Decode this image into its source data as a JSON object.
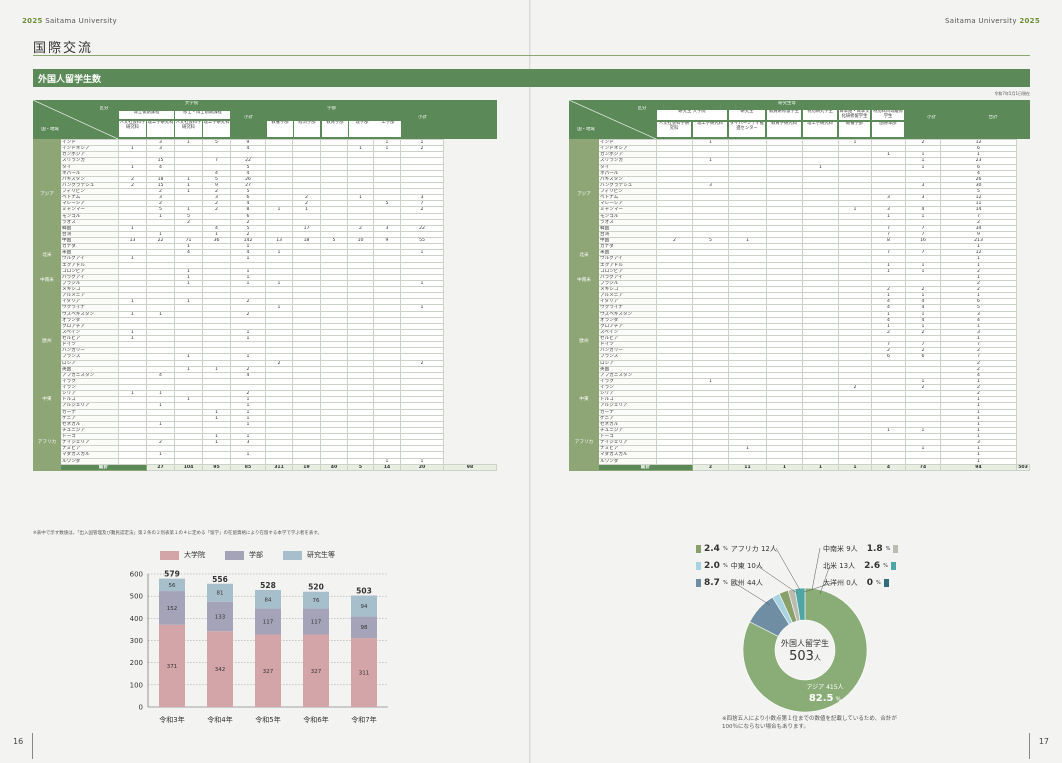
{
  "header": {
    "left_year": "2025",
    "left_name": "Saitama University",
    "right_name": "Saitama University",
    "right_year": "2025",
    "page_left": "16",
    "page_right": "17"
  },
  "title": "国際交流",
  "section": "外国人留学生数",
  "date_note": "令和7年5月1日現在",
  "table_left": {
    "corner_top": "区分",
    "corner_bottom": "国・地域",
    "grad_school": "大学院",
    "doctoral": "博士後期課程",
    "masters": "修士・博士前期課程",
    "subtotal": "小計",
    "faculty": "学部",
    "grad_cols": [
      "人文社会科学研究科",
      "理工学研究科",
      "人文社会科学研究科",
      "理工学研究科"
    ],
    "fac_cols": [
      "教養学部",
      "経済学部",
      "教育学部",
      "理学部",
      "工学部"
    ],
    "fac_subtotal": "小計"
  },
  "table_right": {
    "corner_top": "区分",
    "corner_bottom": "国・地域",
    "research_students": "研究生等",
    "col_groups": [
      "研究生 大学院",
      "研究生",
      "教員研修留学生",
      "特別研究学生",
      "日本語・日本文化研修留学生",
      "特別科目等履修学生"
    ],
    "col_subs": [
      "人文社会科学研究科",
      "理工学研究科",
      "ダイバーシティ推進センター",
      "教育学研究科",
      "理工学研究科",
      "教養学部",
      "国際本部"
    ],
    "subtotal": "小計",
    "total": "合計"
  },
  "regions": [
    {
      "name": "アジア",
      "count": 18
    },
    {
      "name": "北米",
      "count": 2
    },
    {
      "name": "中南米",
      "count": 6
    },
    {
      "name": "欧州",
      "count": 14
    },
    {
      "name": "中東",
      "count": 5
    },
    {
      "name": "アフリカ",
      "count": 12
    }
  ],
  "countries": [
    "インド",
    "インドネシア",
    "カンボジア",
    "スリランカ",
    "タイ",
    "ネパール",
    "パキスタン",
    "バングラデシュ",
    "フィリピン",
    "ベトナム",
    "マレーシア",
    "ミャンマー",
    "モンゴル",
    "ラオス",
    "韓国",
    "台湾",
    "中国",
    "カナダ",
    "米国",
    "ウルグアイ",
    "エクアドル",
    "コロンビア",
    "パラグアイ",
    "ブラジル",
    "メキシコ",
    "アルメニア",
    "イタリア",
    "ウクライナ",
    "ウズベキスタン",
    "オランダ",
    "クロアチア",
    "スペイン",
    "セルビア",
    "ドイツ",
    "ハンガリー",
    "フランス",
    "ロシア",
    "英国",
    "アフガニスタン",
    "イラク",
    "イラン",
    "シリア",
    "トルコ",
    "アルジェリア",
    "ガーナ",
    "ケニア",
    "セネガル",
    "チュニジア",
    "トーゴ",
    "ナイジェリア",
    "ナミビア",
    "マダガスカル",
    "ルワンダ"
  ],
  "left_rows": [
    [
      "",
      "3",
      "1",
      "5",
      "9",
      "",
      "",
      "",
      "",
      "1",
      "1"
    ],
    [
      "1",
      "3",
      "",
      "",
      "4",
      "",
      "",
      "",
      "1",
      "1",
      "2"
    ],
    [
      "",
      "",
      "",
      "",
      "",
      "",
      "",
      "",
      "",
      "",
      ""
    ],
    [
      "",
      "15",
      "",
      "7",
      "22",
      "",
      "",
      "",
      "",
      "",
      ""
    ],
    [
      "1",
      "4",
      "",
      "",
      "5",
      "",
      "",
      "",
      "",
      "",
      ""
    ],
    [
      "",
      "",
      "",
      "4",
      "4",
      "",
      "",
      "",
      "",
      "",
      ""
    ],
    [
      "2",
      "18",
      "1",
      "5",
      "26",
      "",
      "",
      "",
      "",
      "",
      ""
    ],
    [
      "2",
      "15",
      "1",
      "9",
      "27",
      "",
      "",
      "",
      "",
      "",
      ""
    ],
    [
      "",
      "2",
      "1",
      "2",
      "5",
      "",
      "",
      "",
      "",
      "",
      ""
    ],
    [
      "",
      "3",
      "",
      "3",
      "6",
      "",
      "2",
      "",
      "1",
      "",
      "3"
    ],
    [
      "",
      "2",
      "",
      "2",
      "4",
      "",
      "2",
      "",
      "",
      "5",
      "7"
    ],
    [
      "",
      "5",
      "1",
      "2",
      "8",
      "1",
      "1",
      "",
      "",
      "",
      "2"
    ],
    [
      "",
      "1",
      "5",
      "",
      "6",
      "",
      "",
      "",
      "",
      "",
      ""
    ],
    [
      "",
      "",
      "2",
      "",
      "2",
      "",
      "",
      "",
      "",
      "",
      ""
    ],
    [
      "1",
      "",
      "",
      "4",
      "5",
      "",
      "17",
      "",
      "2",
      "3",
      "22"
    ],
    [
      "",
      "1",
      "",
      "1",
      "2",
      "",
      "",
      "",
      "",
      "",
      ""
    ],
    [
      "13",
      "22",
      "71",
      "36",
      "142",
      "13",
      "18",
      "5",
      "10",
      "9",
      "55"
    ],
    [
      "",
      "",
      "1",
      "",
      "1",
      "",
      "",
      "",
      "",
      "",
      ""
    ],
    [
      "",
      "",
      "4",
      "",
      "4",
      "1",
      "",
      "",
      "",
      "",
      "1"
    ],
    [
      "1",
      "",
      "",
      "",
      "1",
      "",
      "",
      "",
      "",
      "",
      ""
    ],
    [
      "",
      "",
      "",
      "",
      "",
      "",
      "",
      "",
      "",
      "",
      ""
    ],
    [
      "",
      "",
      "1",
      "",
      "1",
      "",
      "",
      "",
      "",
      "",
      ""
    ],
    [
      "",
      "",
      "1",
      "",
      "1",
      "",
      "",
      "",
      "",
      "",
      ""
    ],
    [
      "",
      "",
      "1",
      "",
      "1",
      "1",
      "",
      "",
      "",
      "",
      "1"
    ],
    [
      "",
      "",
      "",
      "",
      "",
      "",
      "",
      "",
      "",
      "",
      ""
    ],
    [
      "",
      "",
      "",
      "",
      "",
      "",
      "",
      "",
      "",
      "",
      ""
    ],
    [
      "1",
      "",
      "1",
      "",
      "2",
      "",
      "",
      "",
      "",
      "",
      ""
    ],
    [
      "",
      "",
      "",
      "",
      "",
      "1",
      "",
      "",
      "",
      "",
      "1"
    ],
    [
      "1",
      "1",
      "",
      "",
      "2",
      "",
      "",
      "",
      "",
      "",
      ""
    ],
    [
      "",
      "",
      "",
      "",
      "",
      "",
      "",
      "",
      "",
      "",
      ""
    ],
    [
      "",
      "",
      "",
      "",
      "",
      "",
      "",
      "",
      "",
      "",
      ""
    ],
    [
      "1",
      "",
      "",
      "",
      "1",
      "",
      "",
      "",
      "",
      "",
      ""
    ],
    [
      "1",
      "",
      "",
      "",
      "1",
      "",
      "",
      "",
      "",
      "",
      ""
    ],
    [
      "",
      "",
      "",
      "",
      "",
      "",
      "",
      "",
      "",
      "",
      ""
    ],
    [
      "",
      "",
      "",
      "",
      "",
      "",
      "",
      "",
      "",
      "",
      ""
    ],
    [
      "",
      "",
      "1",
      "",
      "1",
      "",
      "",
      "",
      "",
      "",
      ""
    ],
    [
      "",
      "",
      "",
      "",
      "",
      "2",
      "",
      "",
      "",
      "",
      "2"
    ],
    [
      "",
      "",
      "1",
      "1",
      "2",
      "",
      "",
      "",
      "",
      "",
      ""
    ],
    [
      "",
      "4",
      "",
      "",
      "4",
      "",
      "",
      "",
      "",
      "",
      ""
    ],
    [
      "",
      "",
      "",
      "",
      "",
      "",
      "",
      "",
      "",
      "",
      ""
    ],
    [
      "",
      "",
      "",
      "",
      "",
      "",
      "",
      "",
      "",
      "",
      ""
    ],
    [
      "1",
      "1",
      "",
      "",
      "2",
      "",
      "",
      "",
      "",
      "",
      ""
    ],
    [
      "",
      "",
      "1",
      "",
      "1",
      "",
      "",
      "",
      "",
      "",
      ""
    ],
    [
      "",
      "1",
      "",
      "",
      "1",
      "",
      "",
      "",
      "",
      "",
      ""
    ],
    [
      "",
      "",
      "",
      "1",
      "1",
      "",
      "",
      "",
      "",
      "",
      ""
    ],
    [
      "",
      "",
      "",
      "1",
      "1",
      "",
      "",
      "",
      "",
      "",
      ""
    ],
    [
      "",
      "1",
      "",
      "",
      "1",
      "",
      "",
      "",
      "",
      "",
      ""
    ],
    [
      "",
      "",
      "",
      "",
      "",
      "",
      "",
      "",
      "",
      "",
      ""
    ],
    [
      "",
      "",
      "",
      "1",
      "1",
      "",
      "",
      "",
      "",
      "",
      ""
    ],
    [
      "",
      "2",
      "",
      "1",
      "3",
      "",
      "",
      "",
      "",
      "",
      ""
    ],
    [
      "",
      "",
      "",
      "",
      "",
      "",
      "",
      "",
      "",
      "",
      ""
    ],
    [
      "",
      "1",
      "",
      "",
      "1",
      "",
      "",
      "",
      "",
      "",
      ""
    ],
    [
      "",
      "",
      "",
      "",
      "",
      "",
      "",
      "",
      "",
      "1",
      "1"
    ]
  ],
  "left_total": [
    "27",
    "104",
    "95",
    "85",
    "311",
    "19",
    "40",
    "5",
    "14",
    "20",
    "98"
  ],
  "right_rows": [
    [
      "",
      "1",
      "",
      "",
      "",
      "1",
      "",
      "2",
      "12"
    ],
    [
      "",
      "",
      "",
      "",
      "",
      "",
      "",
      "",
      "6"
    ],
    [
      "",
      "",
      "",
      "",
      "",
      "",
      "1",
      "1",
      "1"
    ],
    [
      "",
      "1",
      "",
      "",
      "",
      "",
      "",
      "1",
      "23"
    ],
    [
      "",
      "",
      "",
      "",
      "1",
      "",
      "",
      "1",
      "6"
    ],
    [
      "",
      "",
      "",
      "",
      "",
      "",
      "",
      "",
      "4"
    ],
    [
      "",
      "",
      "",
      "",
      "",
      "",
      "",
      "",
      "26"
    ],
    [
      "",
      "3",
      "",
      "",
      "",
      "",
      "",
      "3",
      "30"
    ],
    [
      "",
      "",
      "",
      "",
      "",
      "",
      "",
      "",
      "5"
    ],
    [
      "",
      "",
      "",
      "",
      "",
      "",
      "3",
      "3",
      "12"
    ],
    [
      "",
      "",
      "",
      "",
      "",
      "",
      "",
      "",
      "11"
    ],
    [
      "",
      "",
      "",
      "",
      "",
      "1",
      "3",
      "4",
      "14"
    ],
    [
      "",
      "",
      "",
      "",
      "",
      "",
      "1",
      "1",
      "7"
    ],
    [
      "",
      "",
      "",
      "",
      "",
      "",
      "",
      "",
      "2"
    ],
    [
      "",
      "",
      "",
      "",
      "",
      "",
      "7",
      "7",
      "34"
    ],
    [
      "",
      "",
      "",
      "",
      "",
      "",
      "7",
      "7",
      "9"
    ],
    [
      "2",
      "5",
      "1",
      "",
      "",
      "",
      "8",
      "16",
      "213"
    ],
    [
      "",
      "",
      "",
      "",
      "",
      "",
      "",
      "",
      "1"
    ],
    [
      "",
      "",
      "",
      "",
      "",
      "",
      "7",
      "7",
      "12"
    ],
    [
      "",
      "",
      "",
      "",
      "",
      "",
      "",
      "",
      "1"
    ],
    [
      "",
      "",
      "",
      "",
      "",
      "",
      "1",
      "1",
      "1"
    ],
    [
      "",
      "",
      "",
      "",
      "",
      "",
      "1",
      "1",
      "2"
    ],
    [
      "",
      "",
      "",
      "",
      "",
      "",
      "",
      "",
      "1"
    ],
    [
      "",
      "",
      "",
      "",
      "",
      "",
      "",
      "",
      "2"
    ],
    [
      "",
      "",
      "",
      "",
      "",
      "",
      "2",
      "2",
      "2"
    ],
    [
      "",
      "",
      "",
      "",
      "",
      "",
      "1",
      "1",
      "1"
    ],
    [
      "",
      "",
      "",
      "",
      "",
      "",
      "4",
      "4",
      "6"
    ],
    [
      "",
      "",
      "",
      "",
      "",
      "",
      "4",
      "4",
      "5"
    ],
    [
      "",
      "",
      "",
      "",
      "",
      "",
      "1",
      "1",
      "3"
    ],
    [
      "",
      "",
      "",
      "",
      "",
      "",
      "4",
      "4",
      "4"
    ],
    [
      "",
      "",
      "",
      "",
      "",
      "",
      "1",
      "1",
      "1"
    ],
    [
      "",
      "",
      "",
      "",
      "",
      "",
      "2",
      "2",
      "3"
    ],
    [
      "",
      "",
      "",
      "",
      "",
      "",
      "",
      "",
      "1"
    ],
    [
      "",
      "",
      "",
      "",
      "",
      "",
      "7",
      "7",
      "7"
    ],
    [
      "",
      "",
      "",
      "",
      "",
      "",
      "2",
      "2",
      "2"
    ],
    [
      "",
      "",
      "",
      "",
      "",
      "",
      "6",
      "6",
      "7"
    ],
    [
      "",
      "",
      "",
      "",
      "",
      "",
      "",
      "",
      "2"
    ],
    [
      "",
      "",
      "",
      "",
      "",
      "",
      "",
      "",
      "2"
    ],
    [
      "",
      "",
      "",
      "",
      "",
      "",
      "",
      "",
      "4"
    ],
    [
      "",
      "1",
      "",
      "",
      "",
      "",
      "",
      "1",
      "1"
    ],
    [
      "",
      "",
      "",
      "",
      "",
      "2",
      "",
      "2",
      "2"
    ],
    [
      "",
      "",
      "",
      "",
      "",
      "",
      "",
      "",
      "2"
    ],
    [
      "",
      "",
      "",
      "",
      "",
      "",
      "",
      "",
      "1"
    ],
    [
      "",
      "",
      "",
      "",
      "",
      "",
      "",
      "",
      "1"
    ],
    [
      "",
      "",
      "",
      "",
      "",
      "",
      "",
      "",
      "1"
    ],
    [
      "",
      "",
      "",
      "",
      "",
      "",
      "",
      "",
      "1"
    ],
    [
      "",
      "",
      "",
      "",
      "",
      "",
      "",
      "",
      "1"
    ],
    [
      "",
      "",
      "",
      "",
      "",
      "",
      "1",
      "1",
      "1"
    ],
    [
      "",
      "",
      "",
      "",
      "",
      "",
      "",
      "",
      "1"
    ],
    [
      "",
      "",
      "",
      "",
      "",
      "",
      "",
      "",
      "3"
    ],
    [
      "",
      "",
      "1",
      "",
      "",
      "",
      "",
      "1",
      "1"
    ],
    [
      "",
      "",
      "",
      "",
      "",
      "",
      "",
      "",
      "1"
    ],
    [
      "",
      "",
      "",
      "",
      "",
      "",
      "",
      "",
      "1"
    ]
  ],
  "right_total": [
    "2",
    "11",
    "1",
    "1",
    "1",
    "4",
    "74",
    "94",
    "503"
  ],
  "total_label": "総計",
  "footnote": "※表中で示す数値は，「出入国管理及び難民認定法」第２条の２別表第１の４に定める「留学」の在留資格により在留する本学で学ぶ者を表す。",
  "chart_data": [
    {
      "type": "bar",
      "stacked": true,
      "categories": [
        "令和3年",
        "令和4年",
        "令和5年",
        "令和6年",
        "令和7年"
      ],
      "series": [
        {
          "name": "大学院",
          "values": [
            371,
            342,
            327,
            327,
            311
          ],
          "color": "#d4a5a8"
        },
        {
          "name": "学部",
          "values": [
            152,
            133,
            117,
            117,
            98
          ],
          "color": "#a5a3b8"
        },
        {
          "name": "研究生等",
          "values": [
            56,
            81,
            84,
            76,
            94
          ],
          "color": "#a7bfcb"
        }
      ],
      "totals": [
        579,
        556,
        528,
        520,
        503
      ],
      "ylim": [
        0,
        600
      ],
      "yticks": [
        0,
        100,
        200,
        300,
        400,
        500,
        600
      ],
      "grid": true,
      "legend": "top"
    },
    {
      "type": "pie",
      "center_label": "外国人留学生",
      "center_value": "503",
      "center_unit": "人",
      "big_label": "アジア 415人",
      "big_pct": "82.5",
      "slices": [
        {
          "name": "アジア",
          "count": "415人",
          "pct": 82.5,
          "color": "#8aac76"
        },
        {
          "name": "欧州",
          "count": "44人",
          "pct": 8.7,
          "color": "#6f8ea3"
        },
        {
          "name": "中東",
          "count": "10人",
          "pct": 2.0,
          "color": "#a8d3e0"
        },
        {
          "name": "アフリカ",
          "count": "12人",
          "pct": 2.4,
          "color": "#8aa06a"
        },
        {
          "name": "中南米",
          "count": "9人",
          "pct": 1.8,
          "color": "#b9bcaf"
        },
        {
          "name": "北米",
          "count": "13人",
          "pct": 2.6,
          "color": "#4ea6a6"
        },
        {
          "name": "大洋州",
          "count": "0人",
          "pct": 0,
          "color": "#2f6c80"
        }
      ]
    }
  ],
  "pie_labels_left": [
    {
      "pct": "2.4",
      "name": "アフリカ 12人"
    },
    {
      "pct": "2.0",
      "name": "中東 10人"
    },
    {
      "pct": "8.7",
      "name": "欧州 44人"
    }
  ],
  "pie_labels_right": [
    {
      "name": "中南米 9人",
      "pct": "1.8"
    },
    {
      "name": "北米 13人",
      "pct": "2.6"
    },
    {
      "name": "大洋州 0人",
      "pct": "0"
    }
  ],
  "pct_unit": "%",
  "pie_note": "※四捨五入により小数点第１位までの数値を記載しているため、合計が100％にならない場合もあります。"
}
